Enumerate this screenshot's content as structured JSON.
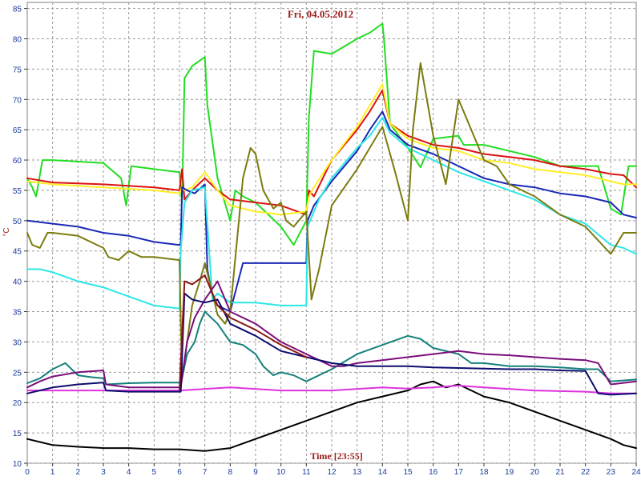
{
  "chart_data": {
    "type": "line",
    "title": "Fri, 04.05.2012",
    "xlabel": "Time [23:55]",
    "ylabel": "°C",
    "xlim": [
      0,
      24
    ],
    "ylim": [
      10,
      86
    ],
    "x_ticks": [
      0,
      1,
      2,
      3,
      4,
      5,
      6,
      7,
      8,
      9,
      10,
      11,
      12,
      13,
      14,
      15,
      16,
      17,
      18,
      19,
      20,
      21,
      22,
      23,
      24
    ],
    "y_ticks": [
      10,
      15,
      20,
      25,
      30,
      35,
      40,
      45,
      50,
      55,
      60,
      65,
      70,
      75,
      80,
      85
    ],
    "grid": true,
    "series": [
      {
        "color": "#22dd22",
        "x": [
          0,
          0.2,
          0.35,
          0.6,
          1,
          3,
          3.7,
          3.9,
          4.1,
          5,
          6,
          6.1,
          6.2,
          6.5,
          7,
          7.1,
          7.5,
          8,
          8.2,
          8.5,
          9,
          10,
          10.5,
          11,
          11.1,
          11.3,
          12,
          13,
          13.5,
          14,
          14.05,
          14.3,
          15,
          15.5,
          16,
          17,
          17.2,
          18,
          19,
          20,
          21,
          22,
          22.5,
          23,
          23.4,
          23.7,
          24
        ],
        "values": [
          57,
          55.5,
          54,
          60,
          60,
          59.5,
          57,
          52.5,
          59,
          58.5,
          58,
          53,
          73.5,
          75.5,
          77,
          69,
          57,
          50,
          55,
          54,
          53,
          49,
          46,
          50,
          67,
          78,
          77.5,
          80,
          81,
          82.5,
          80.5,
          66,
          62,
          58.8,
          63.5,
          64,
          62.5,
          62.5,
          61.5,
          60.5,
          59,
          59,
          59,
          52,
          51,
          59,
          59
        ]
      },
      {
        "color": "#dd1111",
        "x": [
          0,
          1,
          3,
          5,
          6,
          6.1,
          6.2,
          6.5,
          7,
          7.5,
          8,
          9,
          10,
          11,
          11.1,
          11.3,
          12,
          13,
          13.5,
          14,
          14.3,
          15,
          16,
          17,
          18,
          19,
          20,
          21,
          22,
          23,
          23.5,
          24
        ],
        "values": [
          57,
          56.3,
          56,
          55.5,
          55,
          58.5,
          53.5,
          55,
          57,
          55,
          53.5,
          53,
          52.5,
          51,
          55,
          54,
          60,
          65,
          68,
          71.5,
          66,
          64,
          62.5,
          62,
          61,
          60.5,
          60,
          59,
          58.5,
          57.7,
          57.5,
          55.5
        ]
      },
      {
        "color": "#ffee22",
        "x": [
          0,
          1,
          3,
          5,
          6,
          6.1,
          6.2,
          6.5,
          7,
          7.5,
          8,
          9,
          10,
          11,
          11.1,
          11.3,
          12,
          13,
          13.5,
          14,
          14.3,
          15,
          16,
          17,
          18,
          19,
          20,
          21,
          22,
          23,
          23.5,
          24
        ],
        "values": [
          56.5,
          56,
          55.5,
          55,
          54.5,
          55.5,
          55,
          55.5,
          58,
          55,
          52.5,
          51.5,
          51,
          51.5,
          54,
          55.5,
          60,
          65.5,
          69,
          72.5,
          66,
          63.5,
          62,
          61.5,
          60,
          59.5,
          58.5,
          58,
          57.5,
          56.5,
          56,
          56
        ]
      },
      {
        "color": "#1a28b4",
        "x": [
          0,
          1,
          2,
          3,
          4,
          5,
          6,
          6.05,
          6.1,
          6.3,
          6.6,
          7,
          7.1,
          7.3,
          7.5,
          8,
          8.5,
          9,
          10,
          10.5,
          11,
          11.05,
          11.3,
          12,
          13,
          13.5,
          14,
          14.3,
          15,
          16,
          17,
          18,
          19,
          20,
          21,
          22,
          23,
          23.5,
          24
        ],
        "values": [
          50,
          49.5,
          49,
          48,
          47.5,
          46.5,
          46,
          46,
          55.5,
          55,
          54.5,
          56,
          42,
          37.5,
          36,
          35,
          43,
          43,
          43,
          43,
          43,
          50,
          52.5,
          56.5,
          61.5,
          65,
          68,
          65,
          62.5,
          61,
          59,
          57,
          56,
          55.5,
          54.5,
          54,
          53,
          51,
          50.5
        ]
      },
      {
        "color": "#2de6e6",
        "x": [
          0,
          0.5,
          1,
          2,
          3,
          4,
          5,
          6,
          6.05,
          6.2,
          6.5,
          7,
          7.3,
          7.5,
          8,
          9,
          10,
          11,
          11.05,
          11.5,
          12,
          13,
          13.5,
          14,
          14.3,
          15,
          16,
          17,
          18,
          19,
          20,
          21,
          22,
          23,
          23.5,
          24
        ],
        "values": [
          42,
          42,
          41.5,
          40,
          39,
          37.5,
          36,
          35.5,
          45,
          53,
          55,
          55.5,
          37,
          38,
          36.5,
          36.5,
          36,
          36,
          49,
          53.5,
          57,
          62,
          64,
          67,
          64.5,
          62,
          60,
          58,
          56.5,
          55,
          53.5,
          51,
          49.5,
          46,
          45.5,
          44.5
        ]
      },
      {
        "color": "#7b7b10",
        "x": [
          0,
          0.2,
          0.5,
          0.8,
          1,
          2,
          3,
          3.2,
          3.6,
          4,
          4.5,
          5,
          6,
          6.1,
          6.5,
          6.8,
          7,
          7.3,
          7.5,
          7.8,
          8,
          8.5,
          8.8,
          9,
          9.3,
          9.7,
          10,
          10.2,
          10.5,
          11,
          11.2,
          11.5,
          12,
          13,
          13.5,
          14,
          14.5,
          15,
          15.2,
          15.5,
          16,
          16.5,
          17,
          17.5,
          18,
          18.5,
          19,
          20,
          21,
          22,
          23,
          23.5,
          24
        ],
        "values": [
          48,
          46,
          45.5,
          48,
          48,
          47.5,
          45.5,
          44,
          43.5,
          45,
          44,
          44,
          43.5,
          24,
          36,
          40,
          43,
          38,
          34.5,
          33,
          35,
          57,
          62,
          61,
          55,
          52,
          53,
          50,
          49,
          51.5,
          37,
          42,
          52.5,
          58.5,
          62,
          65.5,
          58,
          50,
          65,
          76,
          64,
          56,
          70,
          65,
          60,
          59,
          56,
          54,
          51,
          49,
          44.5,
          48,
          48
        ]
      },
      {
        "color": "#000000",
        "x": [
          0,
          0.5,
          1,
          2,
          3,
          4,
          5,
          6,
          7,
          8,
          9,
          10,
          11,
          12,
          13,
          14,
          15,
          15.5,
          16,
          16.5,
          17,
          17.5,
          18,
          19,
          20,
          21,
          22,
          23,
          23.5,
          24
        ],
        "values": [
          14,
          13.5,
          13,
          12.7,
          12.5,
          12.5,
          12.3,
          12.3,
          12,
          12.5,
          14,
          15.5,
          17,
          18.5,
          20,
          21,
          22,
          23,
          23.5,
          22.5,
          23,
          22,
          21,
          20,
          18.5,
          17,
          15.5,
          14,
          13,
          12.5
        ]
      },
      {
        "color": "#dd33dd",
        "x": [
          0,
          2,
          4,
          6,
          8,
          10,
          12,
          14,
          15,
          16,
          17,
          18,
          20,
          22,
          23,
          24
        ],
        "values": [
          22,
          22,
          22,
          22,
          22.5,
          22,
          22,
          22.5,
          22.3,
          22.5,
          22.8,
          22.5,
          22,
          21.8,
          21.5,
          21.5
        ]
      },
      {
        "color": "#14807c",
        "x": [
          0,
          0.5,
          1,
          1.5,
          2,
          2.5,
          3,
          3.1,
          4,
          5,
          6,
          6.05,
          6.3,
          6.6,
          6.8,
          7,
          7.5,
          8,
          8.5,
          9,
          9.3,
          9.7,
          10,
          10.5,
          11,
          12,
          13,
          14,
          15,
          15.5,
          16,
          17,
          17.5,
          18,
          19,
          20,
          21,
          22,
          22.5,
          23,
          24
        ],
        "values": [
          23.2,
          24,
          25.5,
          26.5,
          24.5,
          24.2,
          24,
          23,
          23.2,
          23.3,
          23.3,
          23,
          28,
          30,
          33,
          35,
          33,
          30,
          29.5,
          28,
          26,
          24.5,
          25,
          24.5,
          23.5,
          25.5,
          28,
          29.5,
          31,
          30.5,
          29,
          28,
          26.5,
          26.5,
          26,
          26,
          25.8,
          25.5,
          25.5,
          23.5,
          23.8
        ]
      },
      {
        "color": "#7a0e7a",
        "x": [
          0,
          0.5,
          1,
          2,
          3,
          3.1,
          4,
          5,
          6,
          6.05,
          6.3,
          6.6,
          7,
          7.5,
          8,
          9,
          10,
          11,
          12,
          12.5,
          13,
          14,
          15,
          16,
          17,
          18,
          19,
          20,
          21,
          22,
          22.5,
          23,
          24
        ],
        "values": [
          22.5,
          23.5,
          24.3,
          25,
          25.3,
          23,
          22.5,
          22.5,
          22.5,
          22.5,
          30,
          34,
          37,
          40,
          35,
          33,
          30,
          28,
          26,
          26,
          26.5,
          27,
          27.5,
          28,
          28.5,
          28,
          27.8,
          27.5,
          27.2,
          27,
          26.5,
          23,
          23.5
        ]
      },
      {
        "color": "#0c0c6e",
        "x": [
          0,
          1,
          2,
          3,
          3.1,
          4,
          5,
          6,
          6.05,
          6.2,
          6.5,
          7,
          7.5,
          8,
          9,
          10,
          11,
          12,
          13,
          14,
          15,
          16,
          17,
          18,
          19,
          20,
          21,
          22,
          22.5,
          23,
          24
        ],
        "values": [
          21.5,
          22.5,
          23,
          23.3,
          22,
          21.8,
          21.8,
          21.8,
          21.8,
          38,
          37,
          36.5,
          37,
          33,
          31,
          28.5,
          27.5,
          26.5,
          26,
          26,
          26,
          25.8,
          25.7,
          25.6,
          25.5,
          25.5,
          25.3,
          25.2,
          21.5,
          21.3,
          21.5
        ]
      },
      {
        "color": "#8a1717",
        "x": [
          6,
          6.2,
          6.5,
          7,
          7.5,
          8,
          9,
          10,
          11
        ],
        "values": [
          22,
          40,
          39.5,
          41,
          36,
          34,
          32,
          29.5,
          27.5
        ]
      }
    ]
  }
}
